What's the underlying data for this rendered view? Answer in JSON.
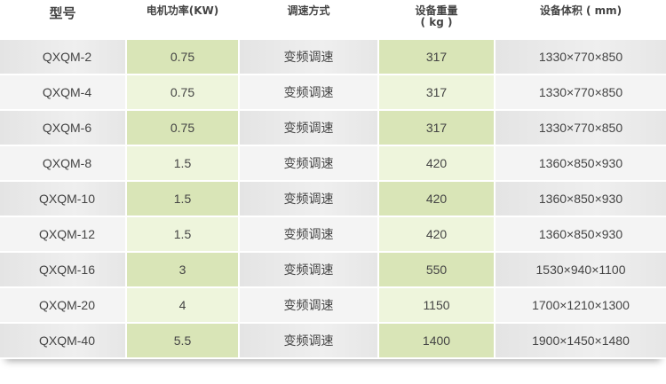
{
  "headers": {
    "model": "型号",
    "power": "电机功率(KW)",
    "speed": "调速方式",
    "weight_line1": "设备重量",
    "weight_line2": "( kg )",
    "size": "设备体积 ( mm)"
  },
  "rows": [
    {
      "model": "QXQM-2",
      "power": "0.75",
      "speed": "变频调速",
      "weight": "317",
      "size": "1330×770×850"
    },
    {
      "model": "QXQM-4",
      "power": "0.75",
      "speed": "变频调速",
      "weight": "317",
      "size": "1330×770×850"
    },
    {
      "model": "QXQM-6",
      "power": "0.75",
      "speed": "变频调速",
      "weight": "317",
      "size": "1330×770×850"
    },
    {
      "model": "QXQM-8",
      "power": "1.5",
      "speed": "变频调速",
      "weight": "420",
      "size": "1360×850×930"
    },
    {
      "model": "QXQM-10",
      "power": "1.5",
      "speed": "变频调速",
      "weight": "420",
      "size": "1360×850×930"
    },
    {
      "model": "QXQM-12",
      "power": "1.5",
      "speed": "变频调速",
      "weight": "420",
      "size": "1360×850×930"
    },
    {
      "model": "QXQM-16",
      "power": "3",
      "speed": "变频调速",
      "weight": "550",
      "size": "1530×940×1100"
    },
    {
      "model": "QXQM-20",
      "power": "4",
      "speed": "变频调速",
      "weight": "1150",
      "size": "1700×1210×1300"
    },
    {
      "model": "QXQM-40",
      "power": "5.5",
      "speed": "变频调速",
      "weight": "1400",
      "size": "1900×1450×1480"
    }
  ],
  "colors": {
    "gray_dark": "#e6e6e6",
    "gray_light": "#f4f4f4",
    "green_dark": "#d9e5b7",
    "green_light": "#eef5dc"
  }
}
